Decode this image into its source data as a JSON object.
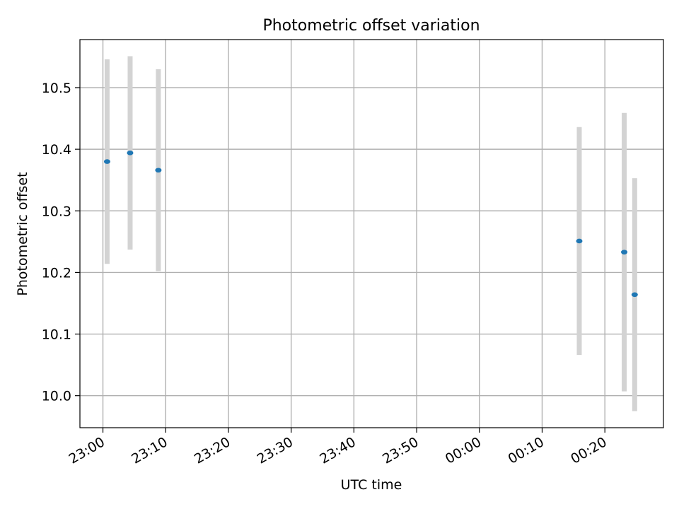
{
  "chart_data": {
    "type": "scatter",
    "title": "Photometric offset variation",
    "xlabel": "UTC time",
    "ylabel": "Photometric offset",
    "x_ticks": [
      "23:00",
      "23:10",
      "23:20",
      "23:30",
      "23:40",
      "23:50",
      "00:00",
      "00:10",
      "00:20"
    ],
    "y_ticks": [
      "10.0",
      "10.1",
      "10.2",
      "10.3",
      "10.4",
      "10.5"
    ],
    "xlim": [
      "22:56:20",
      "00:29:20"
    ],
    "ylim": [
      9.948,
      10.578
    ],
    "grid": true,
    "series": [
      {
        "x": [
          "23:00:40",
          "23:04:20",
          "23:08:50",
          "00:15:55",
          "00:23:05",
          "00:24:45"
        ],
        "y": [
          10.38,
          10.394,
          10.366,
          10.251,
          10.233,
          10.164
        ],
        "yerr": [
          0.166,
          0.157,
          0.164,
          0.185,
          0.226,
          0.189
        ]
      }
    ],
    "colors": {
      "marker": "#1f77b4",
      "errorbar": "#d3d3d3",
      "grid": "#b0b0b0"
    }
  }
}
